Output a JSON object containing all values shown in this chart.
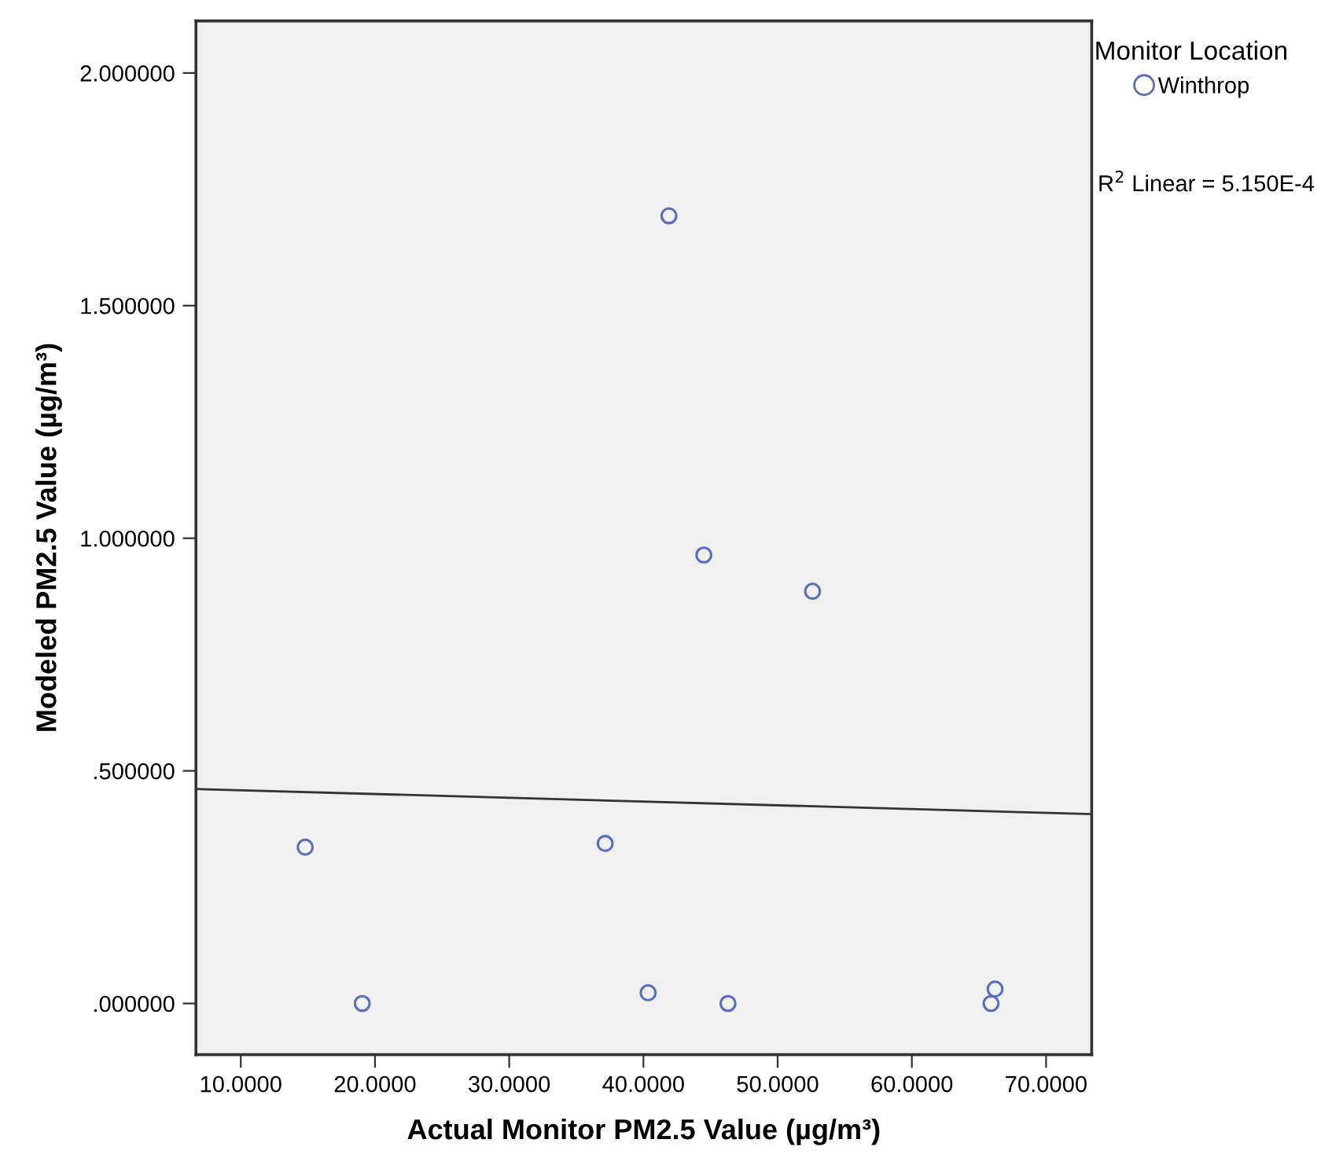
{
  "chart_data": {
    "type": "scatter",
    "xlabel": "Actual Monitor PM2.5 Value (µg/m³)",
    "ylabel": "Modeled PM2.5 Value (µg/m³)",
    "legend_title": "Monitor Location",
    "legend": "top right",
    "marker": "circle",
    "grid": false,
    "xlim": [
      6.66,
      73.4
    ],
    "ylim": [
      -0.11,
      2.112
    ],
    "xticks": [
      {
        "value": 10,
        "label": "10.0000"
      },
      {
        "value": 20,
        "label": "20.0000"
      },
      {
        "value": 30,
        "label": "30.0000"
      },
      {
        "value": 40,
        "label": "40.0000"
      },
      {
        "value": 50,
        "label": "50.0000"
      },
      {
        "value": 60,
        "label": "60.0000"
      },
      {
        "value": 70,
        "label": "70.0000"
      }
    ],
    "yticks": [
      {
        "value": 0,
        "label": ".000000"
      },
      {
        "value": 0.5,
        "label": ".500000"
      },
      {
        "value": 1,
        "label": "1.000000"
      },
      {
        "value": 1.5,
        "label": "1.500000"
      },
      {
        "value": 2,
        "label": "2.000000"
      }
    ],
    "series": [
      {
        "name": "Winthrop",
        "color": "#5a6dc4",
        "x": [
          14.8,
          19.05,
          37.15,
          40.35,
          41.9,
          44.5,
          46.3,
          52.6,
          65.9,
          66.2
        ],
        "values": [
          0.336,
          0,
          0.344,
          0.023,
          1.693,
          0.964,
          0,
          0.886,
          0,
          0.031
        ]
      },
      {
        "type": "line",
        "color": "#333333",
        "marker": "none",
        "x": [
          6.66,
          73.4
        ],
        "values": [
          0.461,
          0.407
        ]
      }
    ],
    "annotations": [
      "R$^{2}$ Linear = 5.150E-4"
    ]
  }
}
